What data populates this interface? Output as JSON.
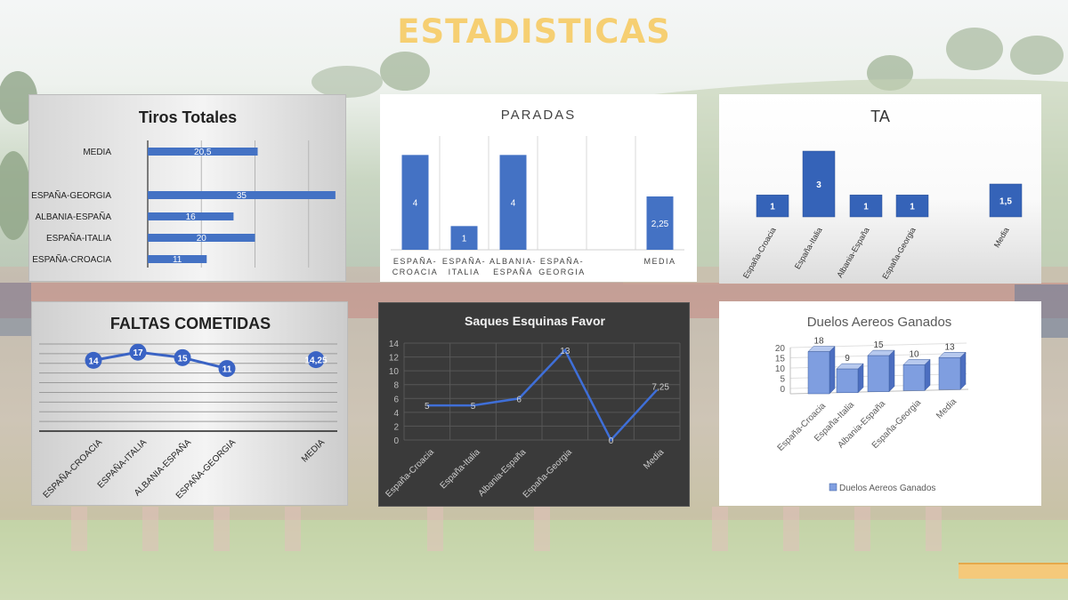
{
  "page": {
    "title": "ESTADISTICAS"
  },
  "colors": {
    "accent": "#f6cf72",
    "bar": "#4472c4",
    "dark_panel": "#3a3a3a"
  },
  "chart_data": [
    {
      "id": "tiros",
      "type": "bar",
      "orientation": "horizontal",
      "title": "Tiros Totales",
      "categories": [
        "ESPAÑA-CROACIA",
        "ESPAÑA-ITALIA",
        "ALBANIA-ESPAÑA",
        "ESPAÑA-GEORGIA",
        "MEDIA"
      ],
      "values": [
        11,
        20,
        16,
        35,
        20.5
      ],
      "labels": [
        "11",
        "20",
        "16",
        "35",
        "20,5"
      ],
      "xlim": [
        0,
        40
      ],
      "grid": true
    },
    {
      "id": "paradas",
      "type": "bar",
      "title": "PARADAS",
      "categories": [
        [
          "ESPAÑA-",
          "CROACIA"
        ],
        [
          "ESPAÑA-",
          "ITALIA"
        ],
        [
          "ALBANIA-",
          "ESPAÑA"
        ],
        [
          "ESPAÑA-",
          "GEORGIA"
        ],
        [
          ""
        ],
        [
          "MEDIA"
        ]
      ],
      "values": [
        4,
        1,
        4,
        null,
        null,
        2.25
      ],
      "labels": [
        "4",
        "1",
        "4",
        "",
        "",
        "2,25"
      ],
      "ylim": [
        0,
        4.8
      ],
      "grid": true
    },
    {
      "id": "ta",
      "type": "bar",
      "title": "TA",
      "categories": [
        "España-Croacia",
        "España-Italia",
        "Albania-España",
        "España-Georgia",
        "",
        "Media"
      ],
      "values": [
        1,
        3,
        1,
        1,
        null,
        1.5
      ],
      "labels": [
        "1",
        "3",
        "1",
        "1",
        "",
        "1,5"
      ],
      "ylim": [
        0,
        3.5
      ]
    },
    {
      "id": "faltas",
      "type": "line",
      "title": "FALTAS COMETIDAS",
      "categories": [
        "ESPAÑA-CROACIA",
        "ESPAÑA-ITALIA",
        "ALBANIA-ESPAÑA",
        "ESPAÑA-GEORGIA",
        "",
        "MEDIA"
      ],
      "values": [
        14,
        17,
        15,
        11,
        null,
        14.25
      ],
      "labels": [
        "14",
        "17",
        "15",
        "11",
        "",
        "14,25"
      ],
      "ylim": [
        -12,
        20
      ],
      "grid": true
    },
    {
      "id": "saques",
      "type": "line",
      "title": "Saques Esquinas Favor",
      "categories": [
        "España-Croacia",
        "España-Italia",
        "Albania-España",
        "España-Georgia",
        "",
        "Media"
      ],
      "values": [
        5,
        5,
        6,
        13,
        0,
        7.25
      ],
      "labels": [
        "5",
        "5",
        "6",
        "13",
        "0",
        "7,25"
      ],
      "ylim": [
        0,
        14
      ],
      "yticks": [
        "0",
        "2",
        "4",
        "6",
        "8",
        "10",
        "12",
        "14"
      ],
      "grid": true
    },
    {
      "id": "duelos",
      "type": "bar",
      "title": "Duelos Aereos Ganados",
      "categories": [
        "España-Croacia",
        "España-Italia",
        "Albania-España",
        "España-Georgia",
        "Media"
      ],
      "values": [
        18,
        9,
        15,
        10,
        13
      ],
      "labels": [
        "18",
        "9",
        "15",
        "10",
        "13"
      ],
      "ylim": [
        0,
        20
      ],
      "yticks": [
        "0",
        "5",
        "10",
        "15",
        "20"
      ],
      "legend": "Duelos Aereos Ganados",
      "legend_position": "bottom"
    }
  ]
}
